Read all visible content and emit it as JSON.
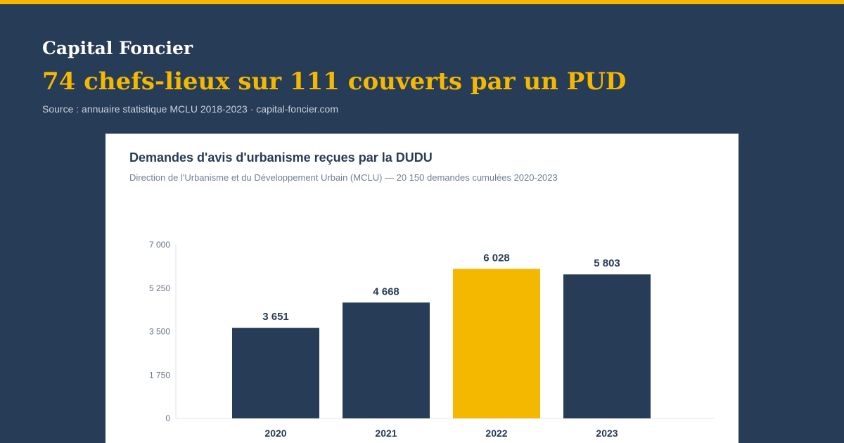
{
  "header": {
    "brand": "Capital Foncier",
    "headline": "74 chefs-lieux sur 111 couverts par un PUD",
    "source": "Source : annuaire statistique MCLU 2018-2023 · capital-foncier.com"
  },
  "colors": {
    "background": "#273c56",
    "accent": "#f5b800",
    "bar": "#273c56",
    "highlight_bar": "#f5b800"
  },
  "chart_data": {
    "type": "bar",
    "title": "Demandes d'avis d'urbanisme reçues par la DUDU",
    "subtitle": "Direction de l'Urbanisme et du Développement Urbain (MCLU) — 20 150 demandes cumulées 2020-2023",
    "categories": [
      "2020",
      "2021",
      "2022",
      "2023"
    ],
    "values": [
      3651,
      4668,
      6028,
      5803
    ],
    "data_labels": [
      "3 651",
      "4 668",
      "6 028",
      "5 803"
    ],
    "highlight": "2022",
    "ylim": [
      0,
      7000
    ],
    "yticks": [
      0,
      1750,
      3500,
      5250,
      7000
    ],
    "ytick_labels": [
      "0",
      "1 750",
      "3 500",
      "5 250",
      "7 000"
    ],
    "xlabel": "",
    "ylabel": "",
    "grid": false,
    "legend": "none"
  }
}
